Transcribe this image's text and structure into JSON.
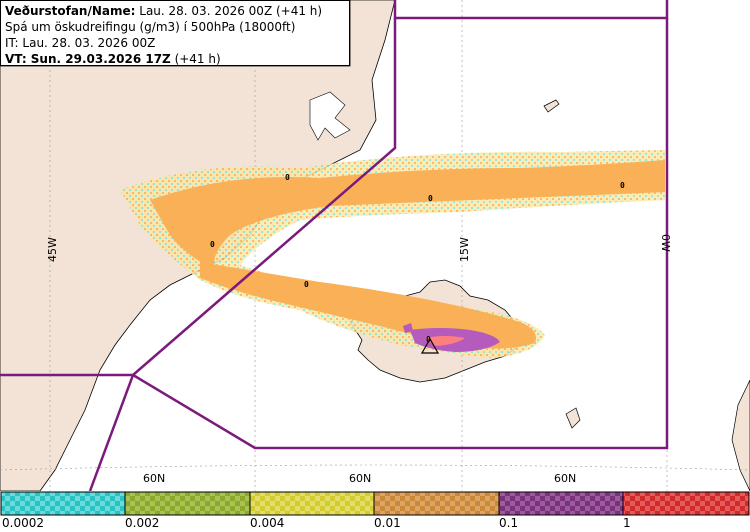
{
  "header": {
    "agency_label": "Veðurstofan/Name:",
    "agency_value": " Lau. 28. 03. 2026 00Z (+41 h)",
    "product_line": "Spá um öskudreifingu (g/m3) í 500hPa (18000ft)",
    "issue_time": "IT: Lau. 28. 03. 2026 00Z",
    "valid_time_label": "VT: Sun. 29.03.2026 17Z",
    "valid_time_suffix": " (+41 h)"
  },
  "map": {
    "longitude_labels": [
      "45W",
      "15W",
      "0W"
    ],
    "latitude_labels": [
      "60N",
      "60N",
      "60N"
    ],
    "contour_labels": [
      "0",
      "0",
      "0",
      "0",
      "0",
      "0"
    ],
    "colors": {
      "land": "#f2e3d6",
      "sea": "#ffffff",
      "coast": "#000000",
      "boundary": "#7b1a7b",
      "ash_low": "#f9b057",
      "ash_edge": "#fbe7a6",
      "ash_cyan": "#7fe6e0",
      "ash_high": "#b45bbd",
      "ash_core": "#ff7f7f",
      "grid": "#999999"
    },
    "volcano_icon": "triangle-volcano-icon"
  },
  "colorbar": {
    "ticks": [
      "0.0002",
      "0.002",
      "0.004",
      "0.01",
      "0.1",
      "1"
    ],
    "colors": [
      "#2ac3c3",
      "#8ca92a",
      "#d2cc31",
      "#cb8938",
      "#7b317b",
      "#d22a2a"
    ]
  }
}
